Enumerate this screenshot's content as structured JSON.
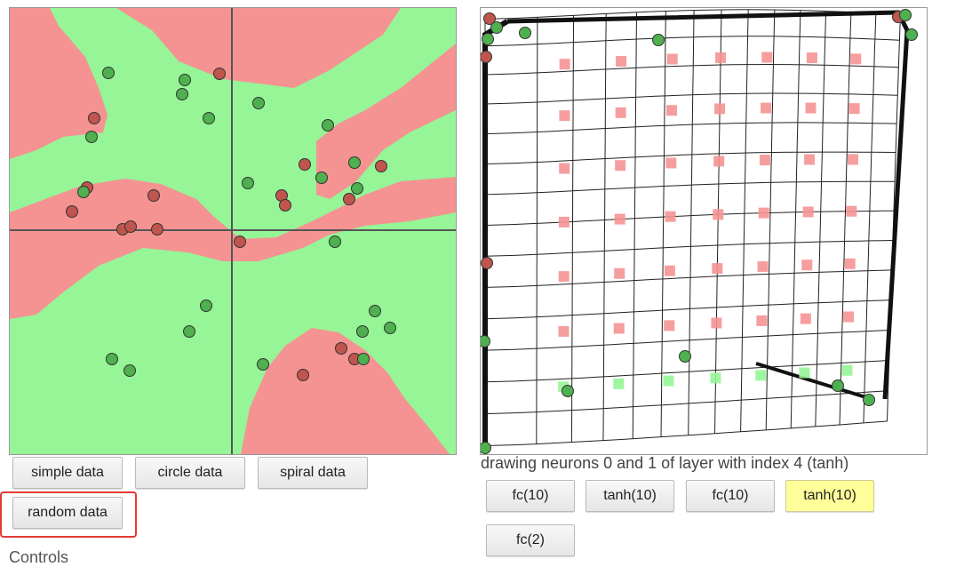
{
  "data_buttons": {
    "simple": "simple data",
    "circle": "circle data",
    "spiral": "spiral data",
    "random": "random data"
  },
  "caption": "drawing neurons 0 and 1 of layer with index 4 (tanh)",
  "layers": [
    "fc(10)",
    "tanh(10)",
    "fc(10)",
    "tanh(10)",
    "fc(2)"
  ],
  "selected_layer_index": 4,
  "controls_label": "Controls",
  "colors": {
    "class_red_region": "#f59393",
    "class_green_region": "#96f596",
    "point_red": "#c0554e",
    "point_green": "#4fb04f",
    "highlight_box": "#e53935",
    "selected_layer_bg": "#ffff99"
  }
}
